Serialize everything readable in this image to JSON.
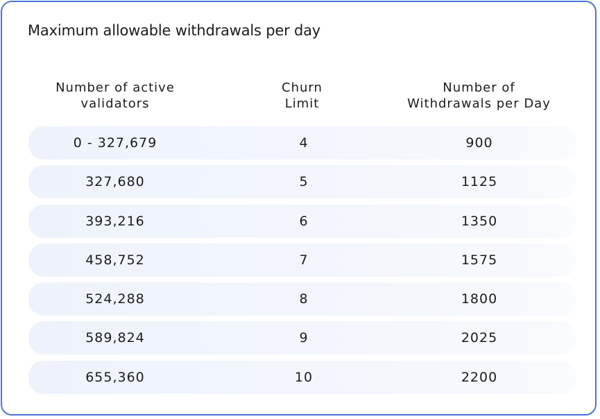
{
  "title": "Maximum allowable withdrawals per day",
  "headers": {
    "validators": [
      "Number of active",
      "validators"
    ],
    "churn": [
      "Churn",
      "Limit"
    ],
    "withdrawals": [
      "Number of",
      "Withdrawals per Day"
    ]
  },
  "rows": [
    {
      "validators": "0 - 327,679",
      "churn": "4",
      "withdrawals": "900"
    },
    {
      "validators": "327,680",
      "churn": "5",
      "withdrawals": "1125"
    },
    {
      "validators": "393,216",
      "churn": "6",
      "withdrawals": "1350"
    },
    {
      "validators": "458,752",
      "churn": "7",
      "withdrawals": "1575"
    },
    {
      "validators": "524,288",
      "churn": "8",
      "withdrawals": "1800"
    },
    {
      "validators": "589,824",
      "churn": "9",
      "withdrawals": "2025"
    },
    {
      "validators": "655,360",
      "churn": "10",
      "withdrawals": "2200"
    }
  ],
  "colors": {
    "border": "#4a73d9",
    "row_background": "#eef3fb",
    "text": "#1c1c1c"
  }
}
